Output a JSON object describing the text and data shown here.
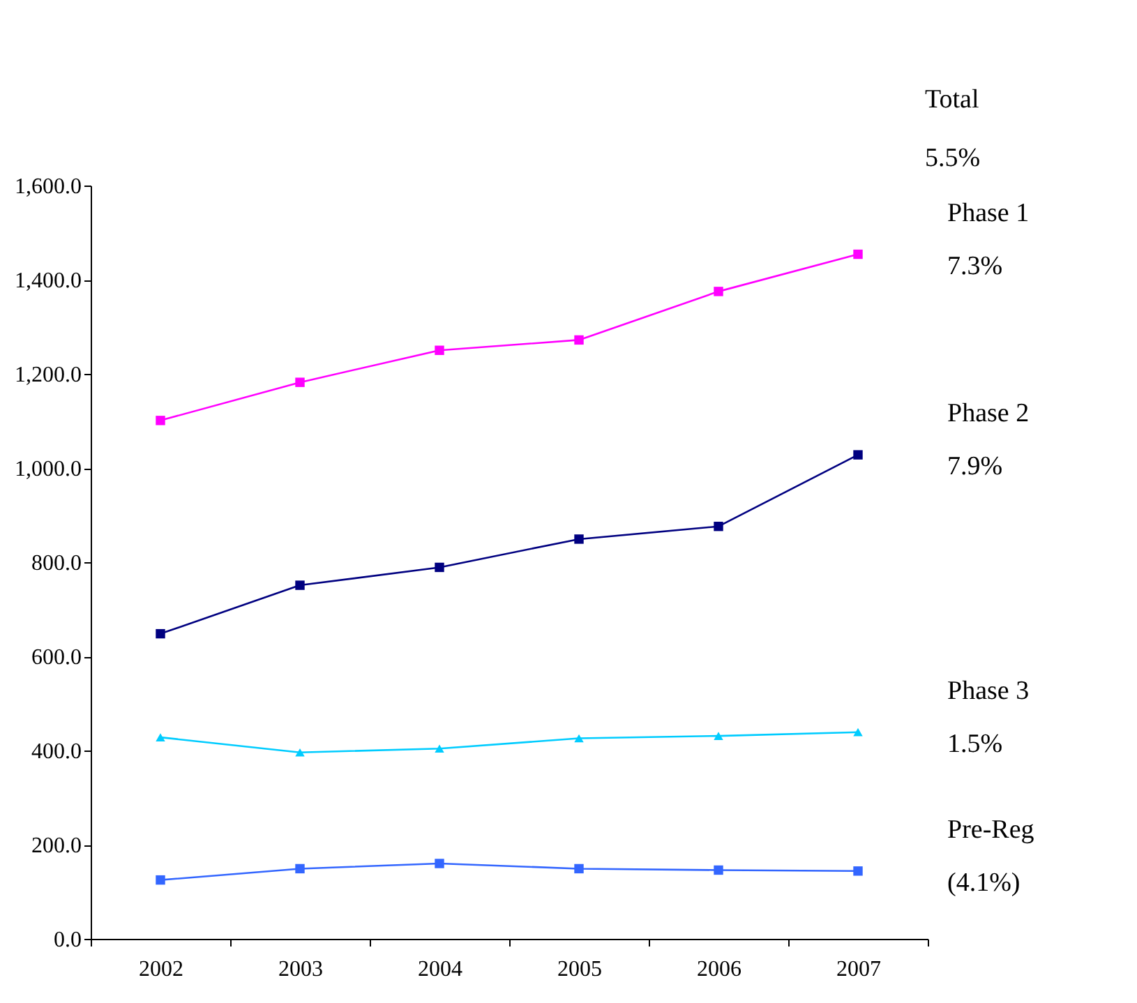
{
  "chart_data": {
    "type": "line",
    "categories": [
      "2002",
      "2003",
      "2004",
      "2005",
      "2006",
      "2007"
    ],
    "series": [
      {
        "name": "Phase 1",
        "color": "#ff00ff",
        "marker": "square",
        "values": [
          1101,
          1182,
          1250,
          1272,
          1375,
          1454
        ]
      },
      {
        "name": "Phase 2",
        "color": "#000080",
        "marker": "square",
        "values": [
          648,
          751,
          789,
          849,
          876,
          1028
        ]
      },
      {
        "name": "Phase 3",
        "color": "#00ccff",
        "marker": "triangle",
        "values": [
          428,
          396,
          404,
          426,
          431,
          439
        ]
      },
      {
        "name": "Pre-Reg",
        "color": "#3366ff",
        "marker": "square",
        "values": [
          125,
          149,
          160,
          149,
          146,
          144
        ]
      }
    ],
    "annotations": [
      "Total",
      "5.5%",
      "7.3%",
      "7.9%",
      "1.5%",
      "(4.1%)"
    ],
    "ylim": [
      0,
      1600
    ],
    "yticks": [
      {
        "value": 0,
        "label": "0.0"
      },
      {
        "value": 200,
        "label": "200.0"
      },
      {
        "value": 400,
        "label": "400.0"
      },
      {
        "value": 600,
        "label": "600.0"
      },
      {
        "value": 800,
        "label": "800.0"
      },
      {
        "value": 1000,
        "label": "1,000.0"
      },
      {
        "value": 1200,
        "label": "1,200.0"
      },
      {
        "value": 1400,
        "label": "1,400.0"
      },
      {
        "value": 1600,
        "label": "1,600.0"
      }
    ],
    "grid": false
  }
}
